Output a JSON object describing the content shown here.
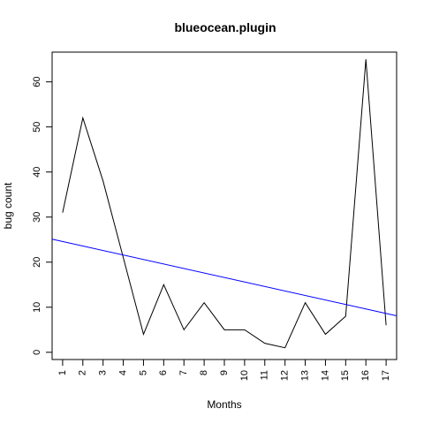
{
  "chart_data": {
    "type": "line",
    "title": "blueocean.plugin",
    "xlabel": "Months",
    "ylabel": "bug count",
    "x": [
      1,
      2,
      3,
      4,
      5,
      6,
      7,
      8,
      9,
      10,
      11,
      12,
      13,
      14,
      15,
      16,
      17
    ],
    "x_tick_labels": [
      "1",
      "2",
      "3",
      "4",
      "5",
      "6",
      "7",
      "8",
      "9",
      "10",
      "11",
      "12",
      "13",
      "14",
      "15",
      "16",
      "17"
    ],
    "y_ticks": [
      0,
      10,
      20,
      30,
      40,
      50,
      60
    ],
    "y_tick_labels": [
      "0",
      "10",
      "20",
      "30",
      "40",
      "50",
      "60"
    ],
    "xlim": [
      0.48,
      17.52
    ],
    "ylim": [
      -1.6,
      66.6
    ],
    "grid": false,
    "series": [
      {
        "values": [
          31,
          52,
          38,
          21,
          4,
          15,
          5,
          11,
          5,
          5,
          2,
          1,
          11,
          4,
          8,
          65,
          6
        ],
        "color": "#000000"
      }
    ],
    "trend_line": {
      "x": [
        0.48,
        17.52
      ],
      "y": [
        25.1,
        8.1
      ],
      "color": "#0000ff"
    }
  }
}
